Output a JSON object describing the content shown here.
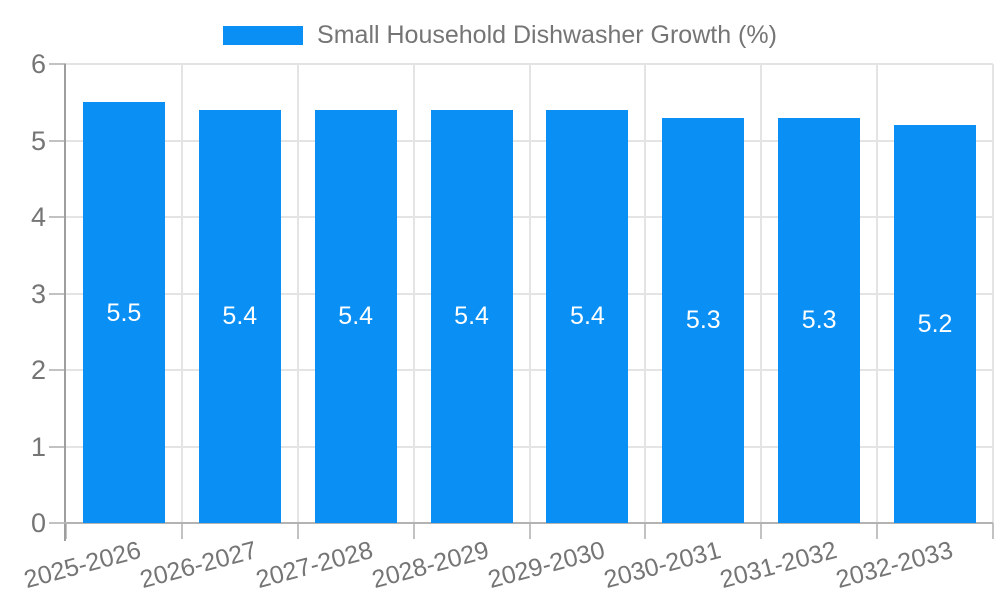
{
  "chart_data": {
    "type": "bar",
    "title": "Small Household Dishwasher Growth (%)",
    "legend": {
      "position": "top",
      "entries": [
        "Small Household Dishwasher Growth (%)"
      ]
    },
    "categories": [
      "2025-2026",
      "2026-2027",
      "2027-2028",
      "2028-2029",
      "2029-2030",
      "2030-2031",
      "2031-2032",
      "2032-2033"
    ],
    "series": [
      {
        "name": "Small Household Dishwasher Growth (%)",
        "values": [
          5.5,
          5.4,
          5.4,
          5.4,
          5.4,
          5.3,
          5.3,
          5.2
        ]
      }
    ],
    "bar_labels": [
      "5.5",
      "5.4",
      "5.4",
      "5.4",
      "5.4",
      "5.3",
      "5.3",
      "5.2"
    ],
    "xlabel": "",
    "ylabel": "",
    "ylim": [
      0,
      6
    ],
    "yticks": [
      0,
      1,
      2,
      3,
      4,
      5,
      6
    ],
    "grid": true,
    "colors": {
      "bar": "#0a8ff5",
      "bar_label_text": "#ffffff",
      "legend_text": "#757575",
      "tick_text": "#757575",
      "axis_line": "#9e9e9e",
      "baseline": "#b3b3b3",
      "gridline": "#e4e4e4",
      "tick_mark": "#c2c2c2",
      "background": "#ffffff"
    }
  }
}
